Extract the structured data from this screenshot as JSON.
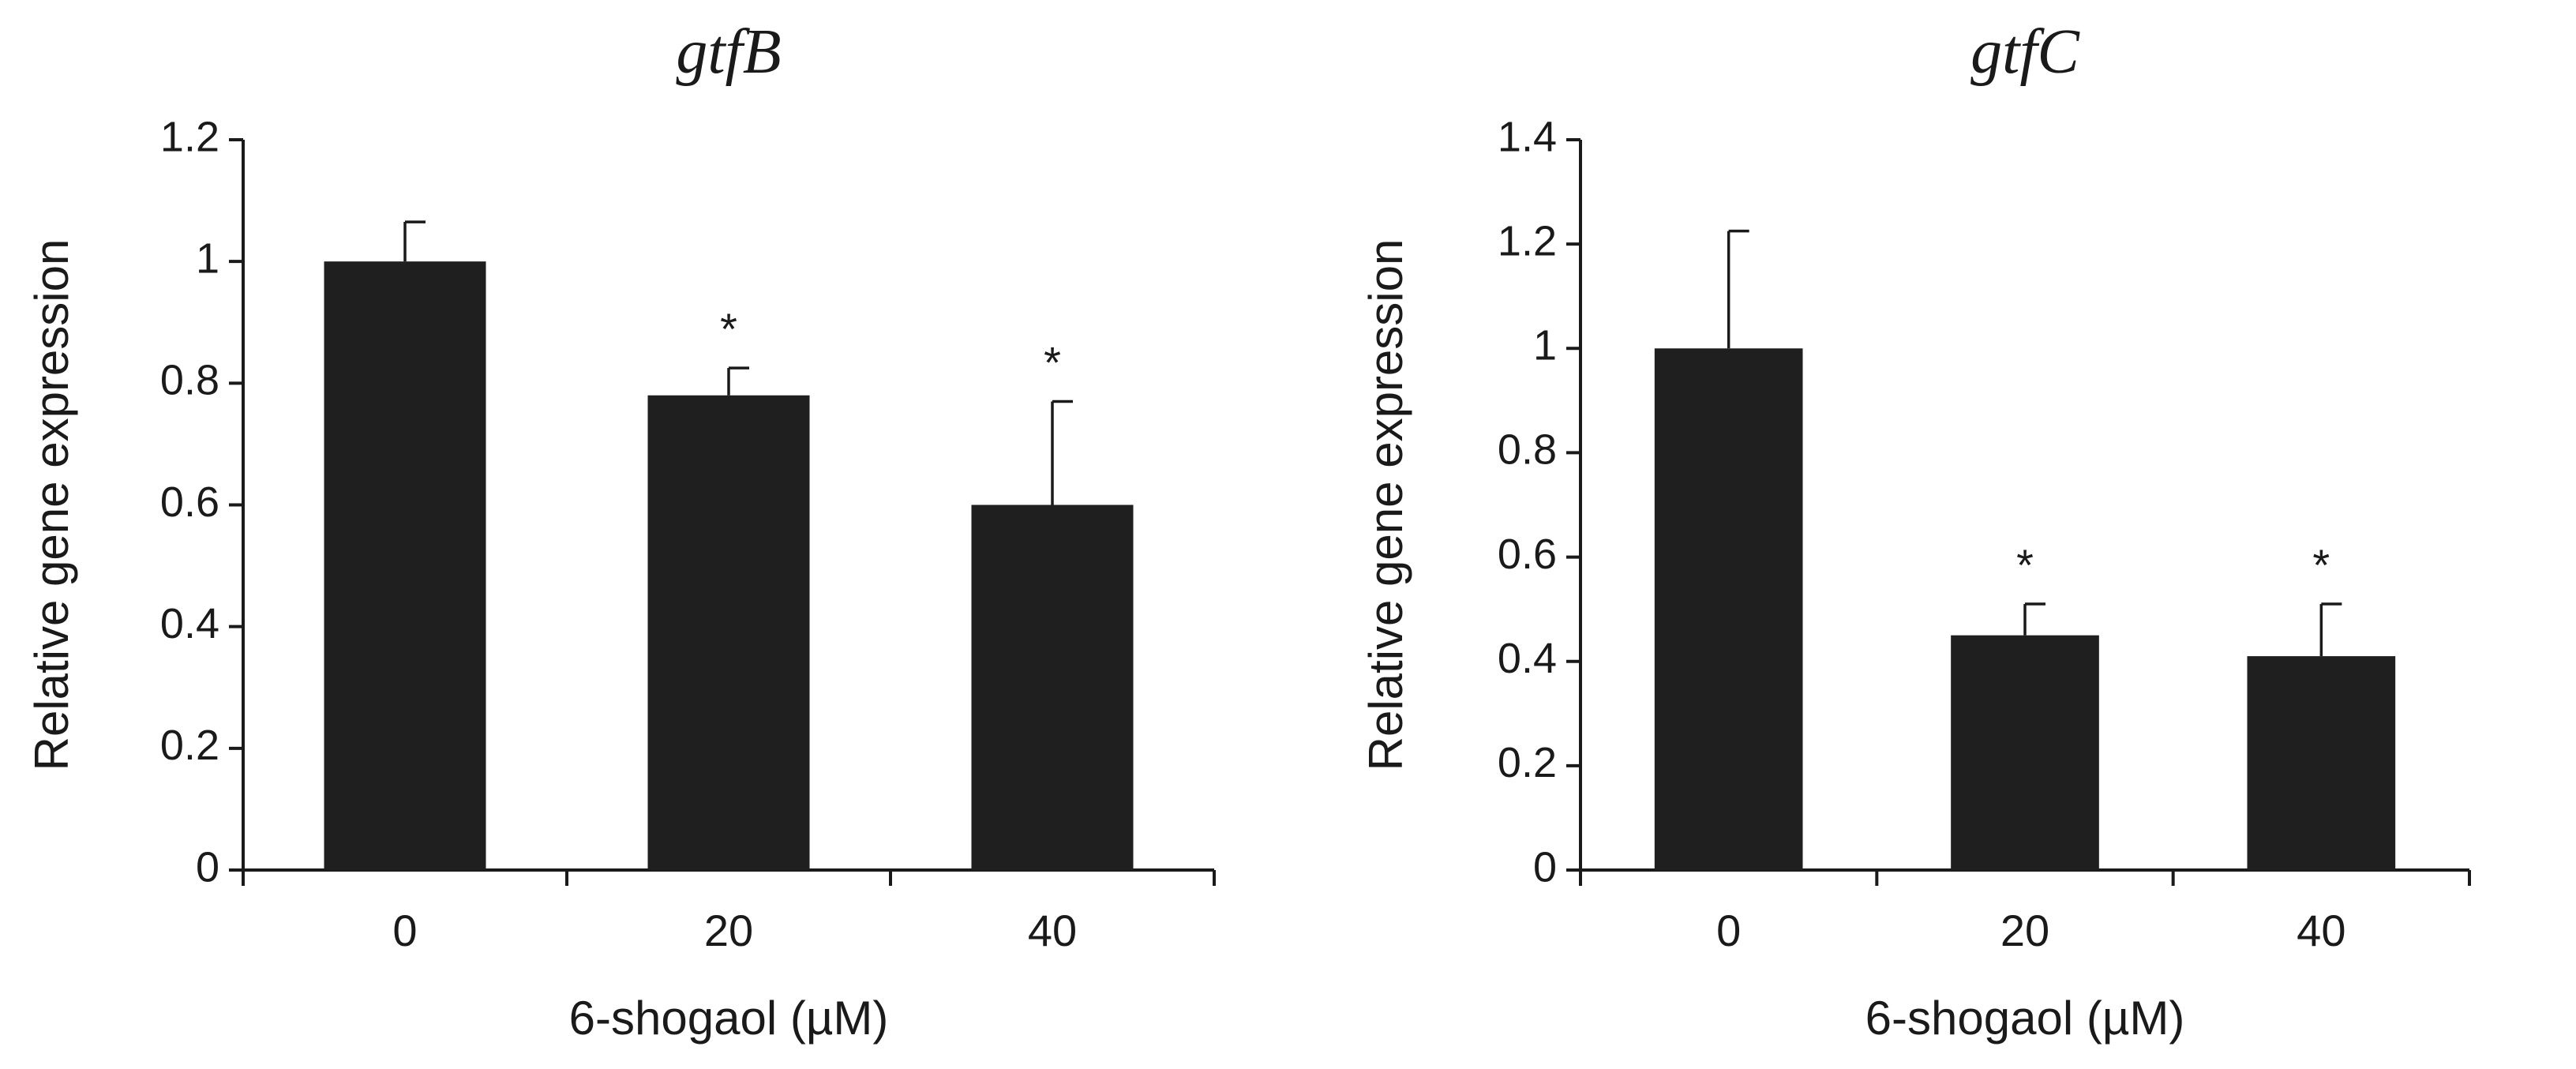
{
  "chart_data": [
    {
      "type": "bar",
      "title": "gtfB",
      "xlabel": "6-shogaol (µM)",
      "ylabel": "Relative gene expression",
      "categories": [
        "0",
        "20",
        "40"
      ],
      "values": [
        1.0,
        0.78,
        0.6
      ],
      "errors": [
        0.065,
        0.045,
        0.17
      ],
      "significance": [
        "",
        "*",
        "*"
      ],
      "ylim": [
        0,
        1.2
      ],
      "yticks": [
        "0",
        "0.2",
        "0.4",
        "0.6",
        "0.8",
        "1",
        "1.2"
      ],
      "bar_color": "#1f1f1f"
    },
    {
      "type": "bar",
      "title": "gtfC",
      "xlabel": "6-shogaol (µM)",
      "ylabel": "Relative gene expression",
      "categories": [
        "0",
        "20",
        "40"
      ],
      "values": [
        1.0,
        0.45,
        0.41
      ],
      "errors": [
        0.225,
        0.06,
        0.1
      ],
      "significance": [
        "",
        "*",
        "*"
      ],
      "ylim": [
        0,
        1.4
      ],
      "yticks": [
        "0",
        "0.2",
        "0.4",
        "0.6",
        "0.8",
        "1",
        "1.2",
        "1.4"
      ],
      "bar_color": "#1f1f1f"
    }
  ]
}
